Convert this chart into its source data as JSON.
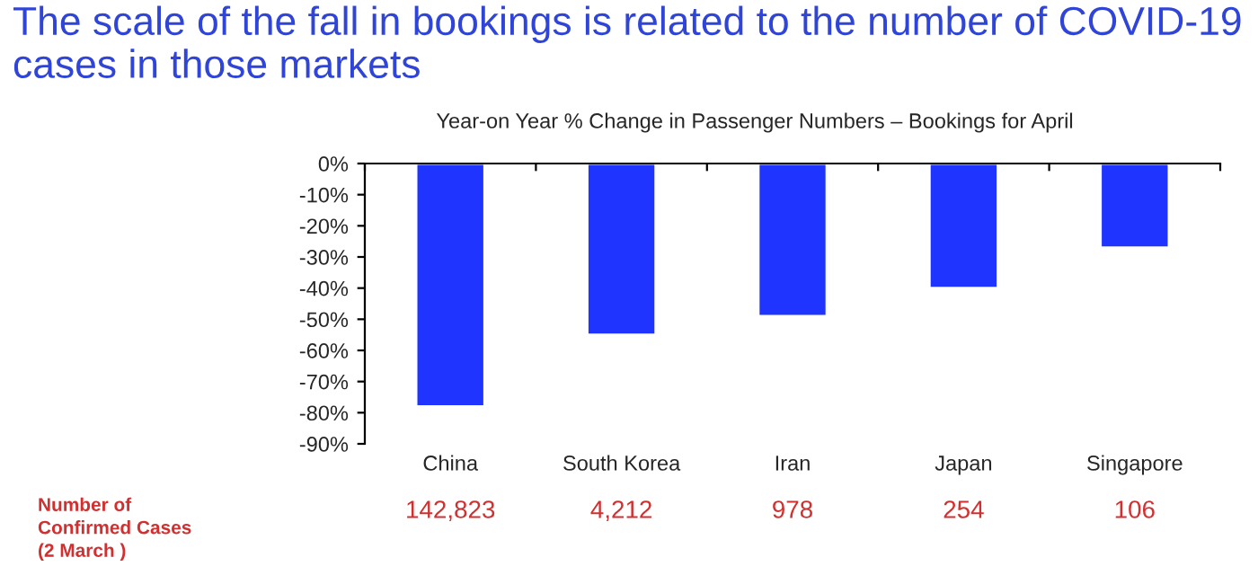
{
  "chart_data": {
    "type": "bar",
    "title": "The scale of the fall in bookings is related to the number of COVID-19 cases in those markets",
    "subtitle": "Year-on Year % Change in Passenger Numbers – Bookings for April",
    "categories": [
      "China",
      "South Korea",
      "Iran",
      "Japan",
      "Singapore"
    ],
    "values": [
      -78,
      -55,
      -49,
      -40,
      -27
    ],
    "color": "#1f35ff",
    "ylim": [
      -90,
      0
    ],
    "yticks": [
      {
        "value": 0,
        "label": "0%"
      },
      {
        "value": -10,
        "label": "-10%"
      },
      {
        "value": -20,
        "label": "-20%"
      },
      {
        "value": -30,
        "label": "-30%"
      },
      {
        "value": -40,
        "label": "-40%"
      },
      {
        "value": -50,
        "label": "-50%"
      },
      {
        "value": -60,
        "label": "-60%"
      },
      {
        "value": -70,
        "label": "-70%"
      },
      {
        "value": -80,
        "label": "-80%"
      },
      {
        "value": -90,
        "label": "-90%"
      }
    ],
    "grid": false,
    "annotations": [
      "Number of\nConfirmed Cases\n(2 March )",
      "142,823",
      "4,212",
      "978",
      "254",
      "106"
    ]
  }
}
